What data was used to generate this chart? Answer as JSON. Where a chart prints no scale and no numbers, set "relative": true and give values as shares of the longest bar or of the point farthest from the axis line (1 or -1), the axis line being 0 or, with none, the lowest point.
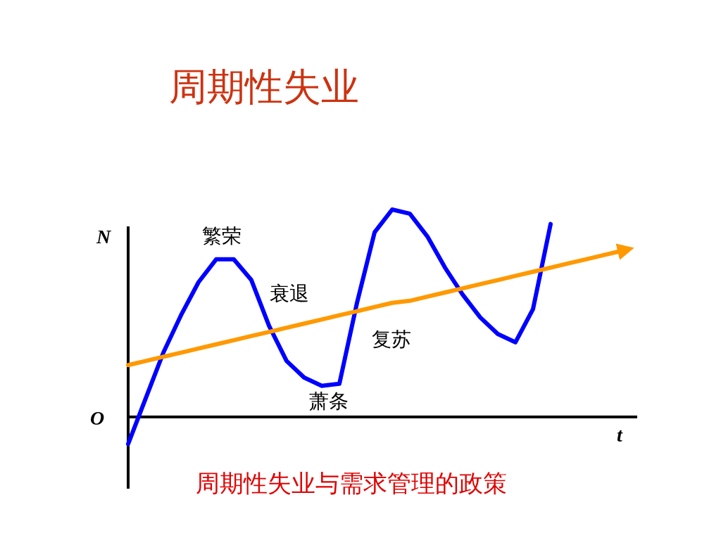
{
  "chart_data": {
    "type": "line",
    "relative": true,
    "title": "周期性失业",
    "xlabel": "t",
    "ylabel": "N",
    "annotations": [
      "O",
      "繁荣",
      "衰退",
      "复苏",
      "萧条",
      "周期性失业与需求管理的政策"
    ],
    "categories": [
      null,
      null,
      null,
      null,
      null,
      null,
      null,
      null,
      null,
      null,
      null,
      null,
      null,
      null,
      null,
      null,
      null,
      null,
      null,
      null,
      null,
      null,
      null,
      null,
      null,
      null,
      null,
      null,
      null
    ],
    "series": [
      {
        "color": "#0000ff",
        "values": [
          -0.13,
          0.09,
          0.31,
          0.49,
          0.65,
          0.76,
          0.76,
          0.66,
          0.44,
          0.27,
          0.19,
          0.15,
          0.16,
          0.55,
          0.89,
          1.0,
          0.98,
          0.87,
          0.72,
          0.59,
          0.48,
          0.4,
          0.36,
          0.52,
          0.93,
          null,
          null,
          null,
          null
        ]
      },
      {
        "color": "#ff9900",
        "values": [
          0.25,
          0.27,
          0.29,
          0.31,
          0.33,
          0.35,
          0.37,
          0.39,
          0.41,
          0.43,
          0.45,
          0.47,
          0.49,
          0.51,
          0.53,
          0.55,
          0.56,
          0.58,
          0.6,
          0.62,
          0.64,
          0.66,
          0.68,
          0.7,
          0.72,
          0.74,
          0.76,
          0.78,
          0.8
        ]
      }
    ]
  }
}
